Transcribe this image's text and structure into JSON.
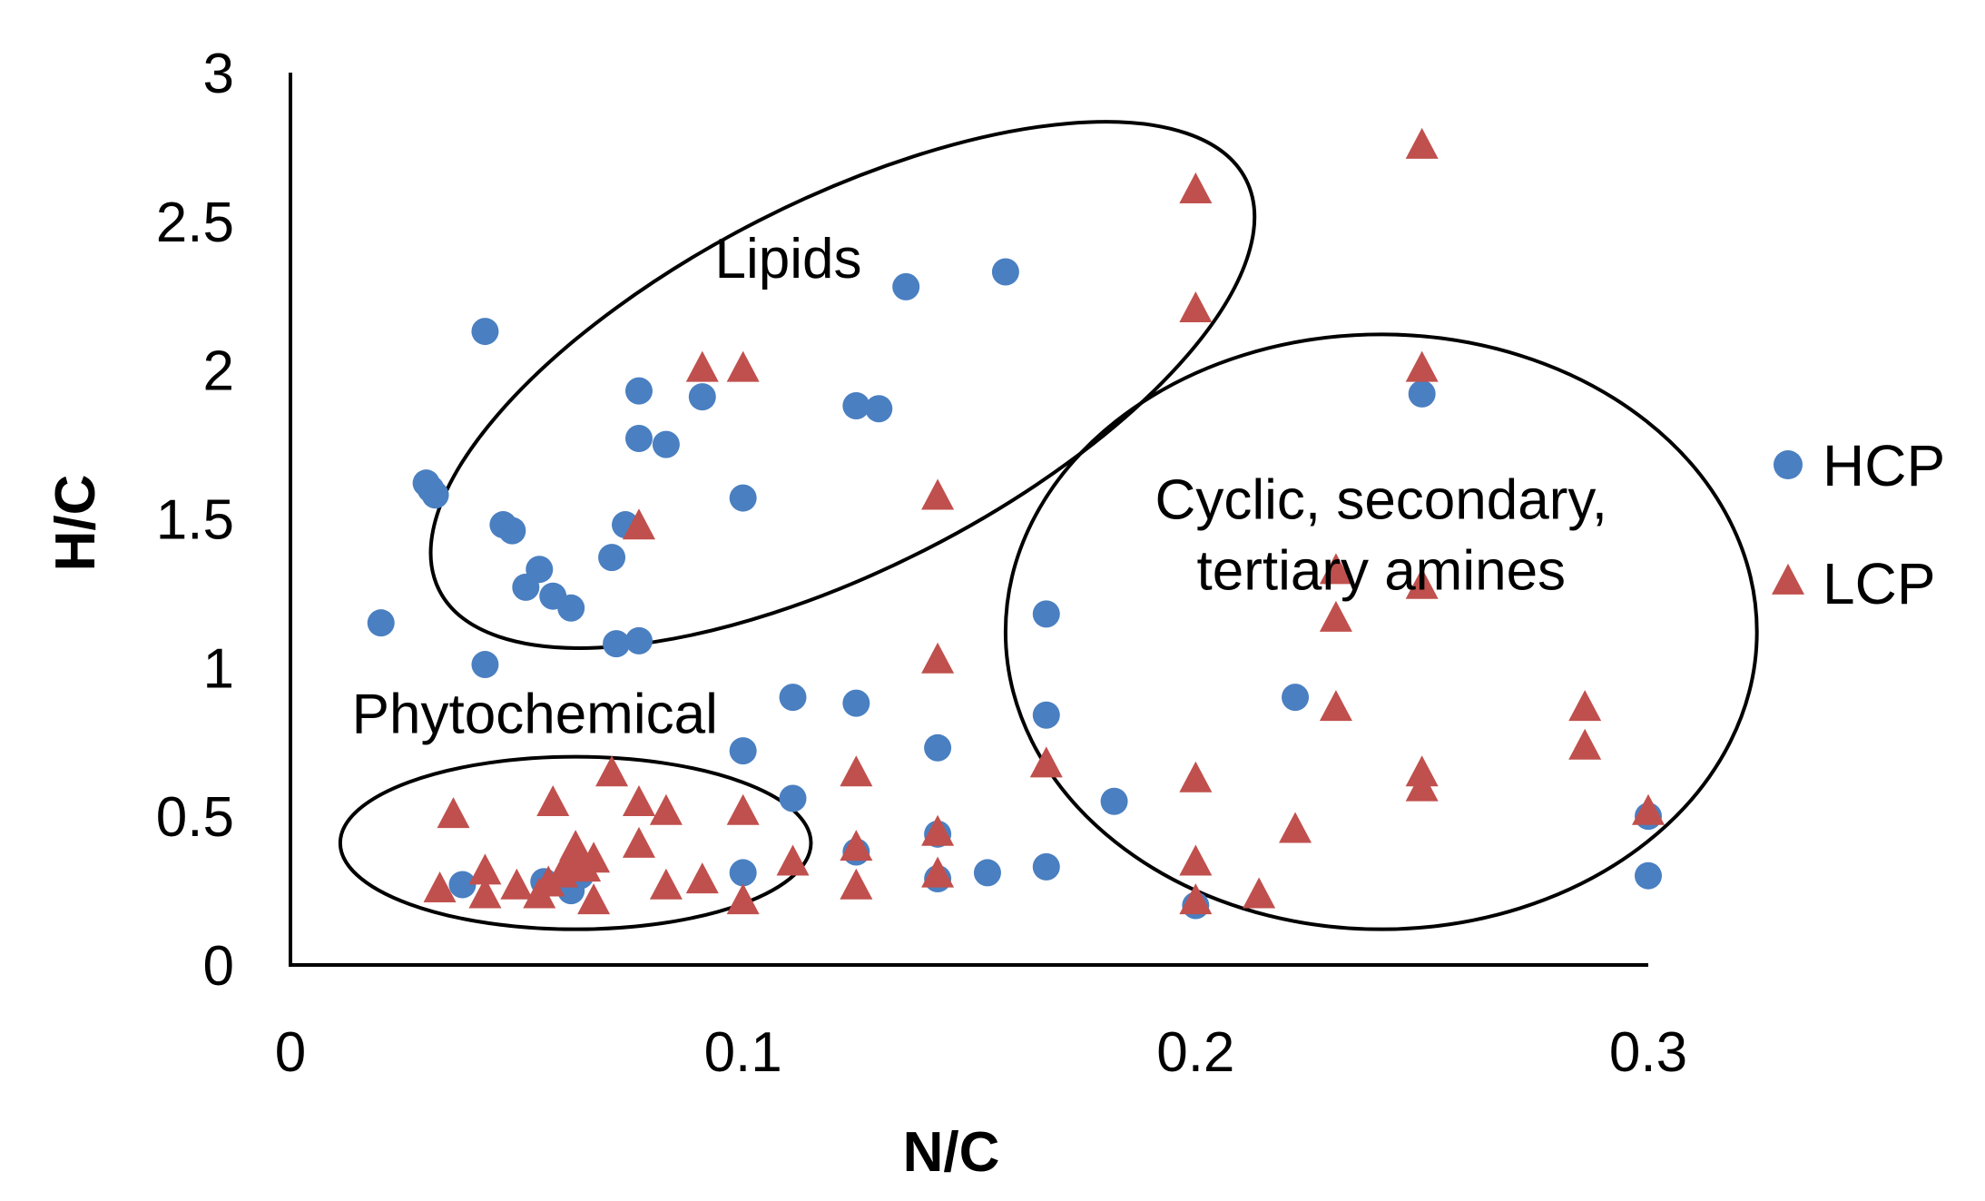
{
  "chart_data": {
    "type": "scatter",
    "xlabel": "N/C",
    "ylabel": "H/C",
    "xlim": [
      0,
      0.3
    ],
    "ylim": [
      0,
      3
    ],
    "x_ticks": [
      "0",
      "0.1",
      "0.2",
      "0.3"
    ],
    "y_ticks": [
      "0",
      "0.5",
      "1",
      "1.5",
      "2",
      "2.5",
      "3"
    ],
    "grid": false,
    "legend_position": "right",
    "series": [
      {
        "name": "HCP",
        "marker": "circle",
        "color": "#4a7fc1",
        "points": [
          [
            0.02,
            1.15
          ],
          [
            0.03,
            1.62
          ],
          [
            0.031,
            1.6
          ],
          [
            0.032,
            1.58
          ],
          [
            0.043,
            2.13
          ],
          [
            0.043,
            1.01
          ],
          [
            0.047,
            1.48
          ],
          [
            0.049,
            1.46
          ],
          [
            0.052,
            1.27
          ],
          [
            0.055,
            1.33
          ],
          [
            0.058,
            1.24
          ],
          [
            0.062,
            1.2
          ],
          [
            0.071,
            1.37
          ],
          [
            0.072,
            1.08
          ],
          [
            0.074,
            1.48
          ],
          [
            0.077,
            1.93
          ],
          [
            0.077,
            1.77
          ],
          [
            0.077,
            1.09
          ],
          [
            0.083,
            1.75
          ],
          [
            0.091,
            1.91
          ],
          [
            0.1,
            1.57
          ],
          [
            0.1,
            0.72
          ],
          [
            0.1,
            0.31
          ],
          [
            0.111,
            0.9
          ],
          [
            0.111,
            0.56
          ],
          [
            0.125,
            1.88
          ],
          [
            0.125,
            0.88
          ],
          [
            0.125,
            0.38
          ],
          [
            0.13,
            1.87
          ],
          [
            0.136,
            2.28
          ],
          [
            0.143,
            0.73
          ],
          [
            0.143,
            0.44
          ],
          [
            0.143,
            0.29
          ],
          [
            0.154,
            0.31
          ],
          [
            0.158,
            2.33
          ],
          [
            0.167,
            1.18
          ],
          [
            0.167,
            0.84
          ],
          [
            0.167,
            0.33
          ],
          [
            0.182,
            0.55
          ],
          [
            0.2,
            0.2
          ],
          [
            0.222,
            0.9
          ],
          [
            0.25,
            1.92
          ],
          [
            0.3,
            0.5
          ],
          [
            0.3,
            0.3
          ],
          [
            0.038,
            0.27
          ],
          [
            0.056,
            0.28
          ],
          [
            0.062,
            0.25
          ],
          [
            0.064,
            0.3
          ]
        ]
      },
      {
        "name": "LCP",
        "marker": "triangle",
        "color": "#c0504d",
        "points": [
          [
            0.033,
            0.25
          ],
          [
            0.036,
            0.5
          ],
          [
            0.043,
            0.31
          ],
          [
            0.043,
            0.23
          ],
          [
            0.05,
            0.26
          ],
          [
            0.055,
            0.23
          ],
          [
            0.057,
            0.27
          ],
          [
            0.058,
            0.54
          ],
          [
            0.06,
            0.3
          ],
          [
            0.062,
            0.34
          ],
          [
            0.063,
            0.39
          ],
          [
            0.065,
            0.32
          ],
          [
            0.067,
            0.35
          ],
          [
            0.067,
            0.21
          ],
          [
            0.071,
            0.64
          ],
          [
            0.077,
            1.47
          ],
          [
            0.077,
            0.54
          ],
          [
            0.077,
            0.4
          ],
          [
            0.083,
            0.51
          ],
          [
            0.083,
            0.26
          ],
          [
            0.091,
            2.0
          ],
          [
            0.091,
            0.28
          ],
          [
            0.1,
            2.0
          ],
          [
            0.1,
            0.51
          ],
          [
            0.1,
            0.21
          ],
          [
            0.111,
            0.34
          ],
          [
            0.125,
            0.64
          ],
          [
            0.125,
            0.39
          ],
          [
            0.125,
            0.26
          ],
          [
            0.143,
            1.57
          ],
          [
            0.143,
            1.02
          ],
          [
            0.143,
            0.44
          ],
          [
            0.143,
            0.3
          ],
          [
            0.167,
            0.67
          ],
          [
            0.2,
            2.6
          ],
          [
            0.2,
            2.2
          ],
          [
            0.2,
            0.62
          ],
          [
            0.2,
            0.34
          ],
          [
            0.2,
            0.21
          ],
          [
            0.214,
            0.23
          ],
          [
            0.222,
            0.45
          ],
          [
            0.231,
            1.32
          ],
          [
            0.231,
            1.16
          ],
          [
            0.231,
            0.86
          ],
          [
            0.25,
            2.75
          ],
          [
            0.25,
            2.0
          ],
          [
            0.25,
            1.27
          ],
          [
            0.25,
            0.64
          ],
          [
            0.25,
            0.59
          ],
          [
            0.286,
            0.86
          ],
          [
            0.286,
            0.73
          ],
          [
            0.3,
            0.51
          ]
        ]
      }
    ],
    "annotations": [
      {
        "text": "Lipids",
        "x": 0.11,
        "y": 2.31,
        "ellipse": {
          "cx": 0.122,
          "cy": 1.95,
          "rx": 0.1,
          "ry": 0.62,
          "rotation_deg": -27
        }
      },
      {
        "text": "Phytochemical",
        "x": 0.054,
        "y": 0.78,
        "ellipse": {
          "cx": 0.063,
          "cy": 0.41,
          "rx": 0.052,
          "ry": 0.29,
          "rotation_deg": 0
        }
      },
      {
        "text": "Cyclic, secondary, tertiary amines",
        "lines": [
          "Cyclic, secondary,",
          "tertiary amines"
        ],
        "x": 0.241,
        "y": 1.5,
        "ellipse": {
          "cx": 0.241,
          "cy": 1.12,
          "rx": 0.083,
          "ry": 1.0,
          "rotation_deg": 0
        }
      }
    ]
  }
}
